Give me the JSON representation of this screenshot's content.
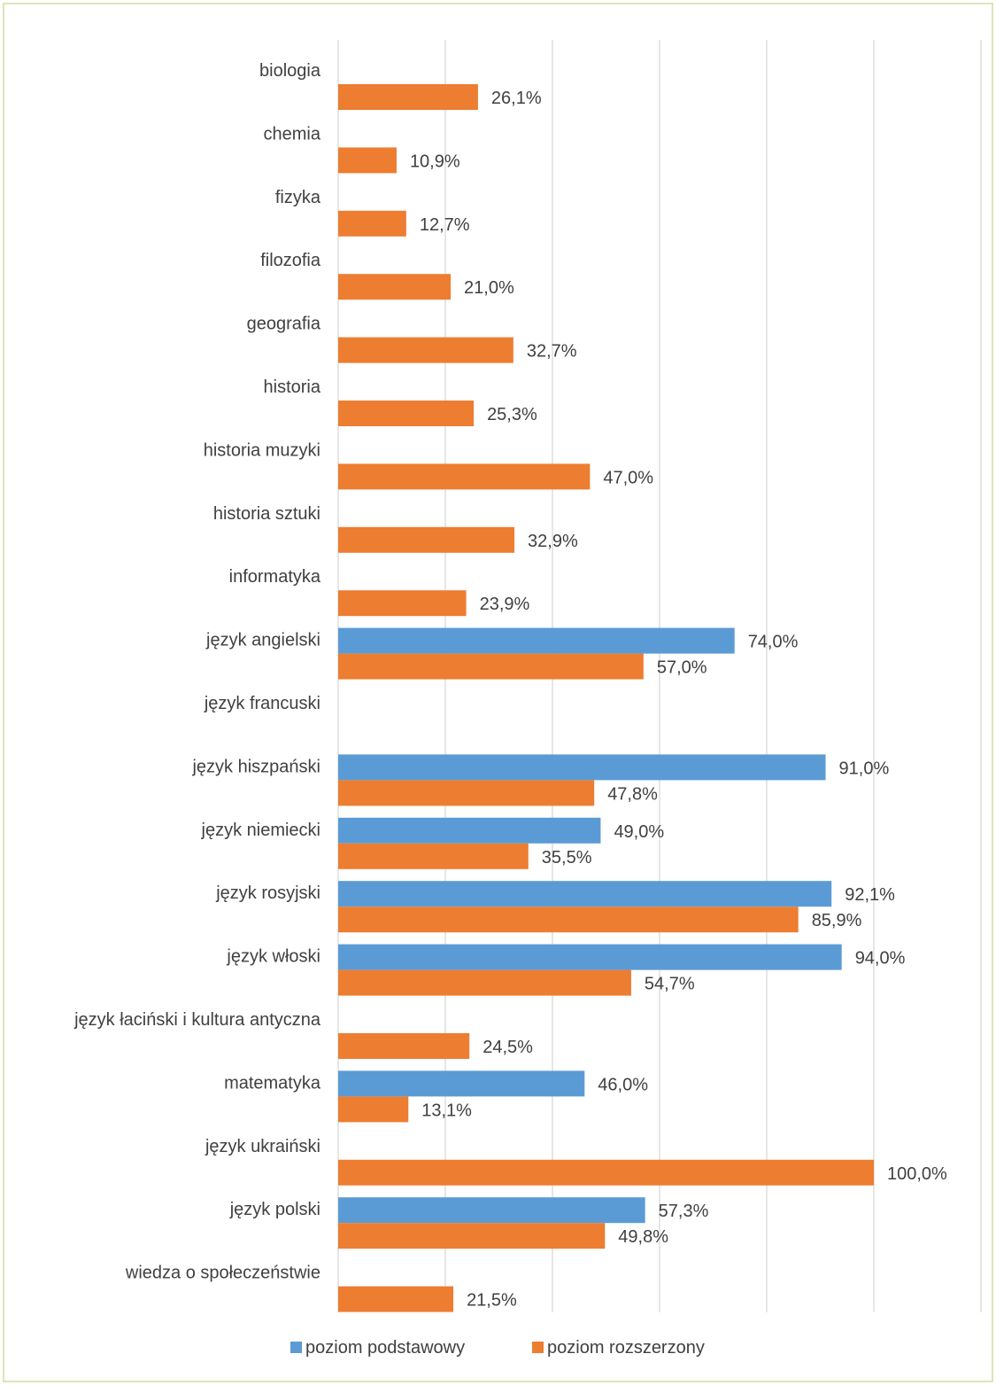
{
  "chart_data": {
    "type": "bar",
    "orientation": "horizontal",
    "categories": [
      "biologia",
      "chemia",
      "fizyka",
      "filozofia",
      "geografia",
      "historia",
      "historia muzyki",
      "historia sztuki",
      "informatyka",
      "język angielski",
      "język francuski",
      "język hiszpański",
      "język niemiecki",
      "język rosyjski",
      "język włoski",
      "język łaciński i kultura antyczna",
      "matematyka",
      "język ukraiński",
      "język polski",
      "wiedza o społeczeństwie"
    ],
    "series": [
      {
        "name": "poziom podstawowy",
        "color": "#5b9bd5",
        "values": [
          null,
          null,
          null,
          null,
          null,
          null,
          null,
          null,
          null,
          74.0,
          null,
          91.0,
          49.0,
          92.1,
          94.0,
          null,
          46.0,
          null,
          57.3,
          null
        ],
        "labels": [
          null,
          null,
          null,
          null,
          null,
          null,
          null,
          null,
          null,
          "74,0%",
          null,
          "91,0%",
          "49,0%",
          "92,1%",
          "94,0%",
          null,
          "46,0%",
          null,
          "57,3%",
          null
        ]
      },
      {
        "name": "poziom rozszerzony",
        "color": "#ed7d31",
        "values": [
          26.1,
          10.9,
          12.7,
          21.0,
          32.7,
          25.3,
          47.0,
          32.9,
          23.9,
          57.0,
          null,
          47.8,
          35.5,
          85.9,
          54.7,
          24.5,
          13.1,
          100.0,
          49.8,
          21.5
        ],
        "labels": [
          "26,1%",
          "10,9%",
          "12,7%",
          "21,0%",
          "32,7%",
          "25,3%",
          "47,0%",
          "32,9%",
          "23,9%",
          "57,0%",
          null,
          "47,8%",
          "35,5%",
          "85,9%",
          "54,7%",
          "24,5%",
          "13,1%",
          "100,0%",
          "49,8%",
          "21,5%"
        ]
      }
    ],
    "xlim": [
      0,
      120
    ],
    "gridlines": "vertical",
    "legend": "bottom",
    "grid_color": "#d9d9d9",
    "text_color": "#404040"
  }
}
